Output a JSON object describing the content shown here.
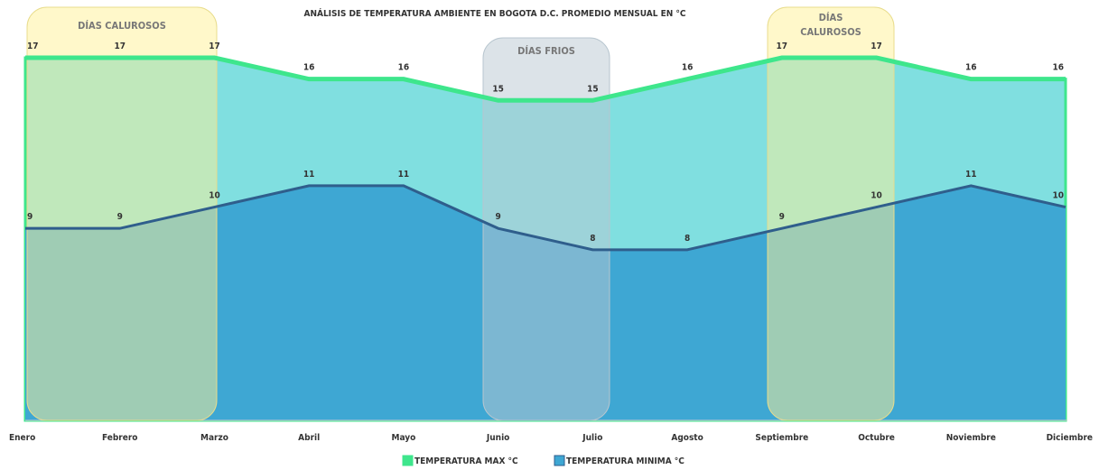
{
  "chart_data": {
    "type": "area",
    "title": "ANÁLISIS DE TEMPERATURA AMBIENTE EN BOGOTA D.C.  PROMEDIO MENSUAL EN °C",
    "categories": [
      "Enero",
      "Febrero",
      "Marzo",
      "Abril",
      "Mayo",
      "Junio",
      "Julio",
      "Agosto",
      "Septiembre",
      "Octubre",
      "Noviembre",
      "Diciembre"
    ],
    "series": [
      {
        "name": "TEMPERATURA MAX °C",
        "color": "#3ee68c",
        "fill": "#80dfe0",
        "values": [
          17,
          17,
          17,
          16,
          16,
          15,
          15,
          16,
          17,
          17,
          16,
          16
        ]
      },
      {
        "name": "TEMPERATURA MINIMA °C",
        "color": "#2f5e8c",
        "fill": "#3ea7d3",
        "values": [
          9,
          9,
          10,
          11,
          11,
          9,
          8,
          8,
          9,
          10,
          11,
          10
        ]
      }
    ],
    "ylim": [
      0,
      17
    ],
    "annotations": [
      {
        "lines": [
          "DÍAS CALUROSOS"
        ]
      },
      {
        "lines": [
          "DÍAS FRIOS"
        ]
      },
      {
        "lines": [
          "DÍAS",
          "CALUROSOS"
        ]
      }
    ]
  }
}
